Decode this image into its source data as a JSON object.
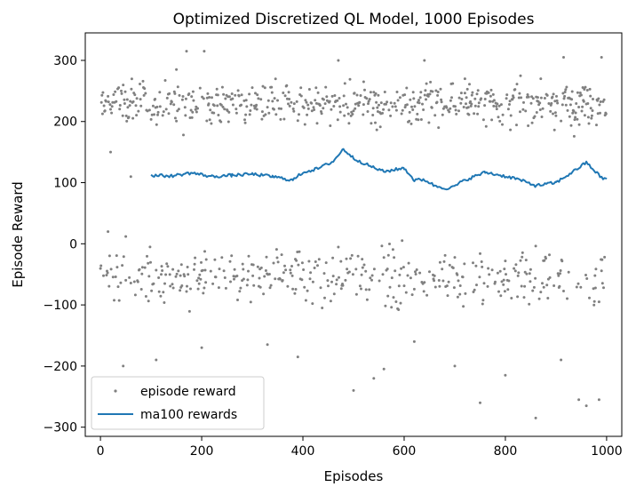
{
  "chart_data": {
    "type": "scatter",
    "title": "Optimized Discretized QL Model, 1000 Episodes",
    "xlabel": "Episodes",
    "ylabel": "Episode Reward",
    "xlim": [
      -30,
      1030
    ],
    "ylim": [
      -315,
      345
    ],
    "xticks": [
      0,
      200,
      400,
      600,
      800,
      1000
    ],
    "yticks": [
      -300,
      -200,
      -100,
      0,
      100,
      200,
      300
    ],
    "xtick_labels": [
      "0",
      "200",
      "400",
      "600",
      "800",
      "1000"
    ],
    "ytick_labels": [
      "−300",
      "−200",
      "−100",
      "0",
      "100",
      "200",
      "300"
    ],
    "grid": false,
    "legend_position": "lower-left",
    "series": [
      {
        "name": "episode reward",
        "kind": "scatter",
        "color": "#808080",
        "note_count": 1000,
        "upper_cluster_range": [
          170,
          290
        ],
        "lower_cluster_range": [
          -130,
          20
        ],
        "highlight_points": [
          [
            20,
            150
          ],
          [
            60,
            110
          ],
          [
            150,
            285
          ],
          [
            170,
            315
          ],
          [
            205,
            315
          ],
          [
            470,
            300
          ],
          [
            520,
            265
          ],
          [
            640,
            300
          ],
          [
            720,
            270
          ],
          [
            830,
            275
          ],
          [
            870,
            270
          ],
          [
            915,
            305
          ],
          [
            990,
            305
          ],
          [
            15,
            20
          ],
          [
            50,
            12
          ],
          [
            45,
            -200
          ],
          [
            110,
            -190
          ],
          [
            200,
            -170
          ],
          [
            330,
            -165
          ],
          [
            390,
            -185
          ],
          [
            500,
            -240
          ],
          [
            540,
            -220
          ],
          [
            560,
            -205
          ],
          [
            620,
            -160
          ],
          [
            700,
            -200
          ],
          [
            750,
            -260
          ],
          [
            800,
            -215
          ],
          [
            860,
            -285
          ],
          [
            910,
            -190
          ],
          [
            945,
            -255
          ],
          [
            960,
            -265
          ],
          [
            985,
            -255
          ]
        ]
      },
      {
        "name": "ma100 rewards",
        "kind": "line",
        "color": "#1f77b4",
        "x": [
          100,
          140,
          180,
          220,
          260,
          300,
          340,
          380,
          400,
          430,
          460,
          480,
          500,
          530,
          560,
          600,
          620,
          640,
          660,
          690,
          720,
          760,
          790,
          820,
          860,
          900,
          930,
          960,
          990,
          1000
        ],
        "y": [
          112,
          111,
          116,
          110,
          112,
          114,
          110,
          104,
          117,
          123,
          135,
          155,
          140,
          128,
          118,
          124,
          104,
          105,
          95,
          90,
          104,
          117,
          112,
          107,
          95,
          100,
          116,
          133,
          108,
          106
        ]
      }
    ]
  }
}
